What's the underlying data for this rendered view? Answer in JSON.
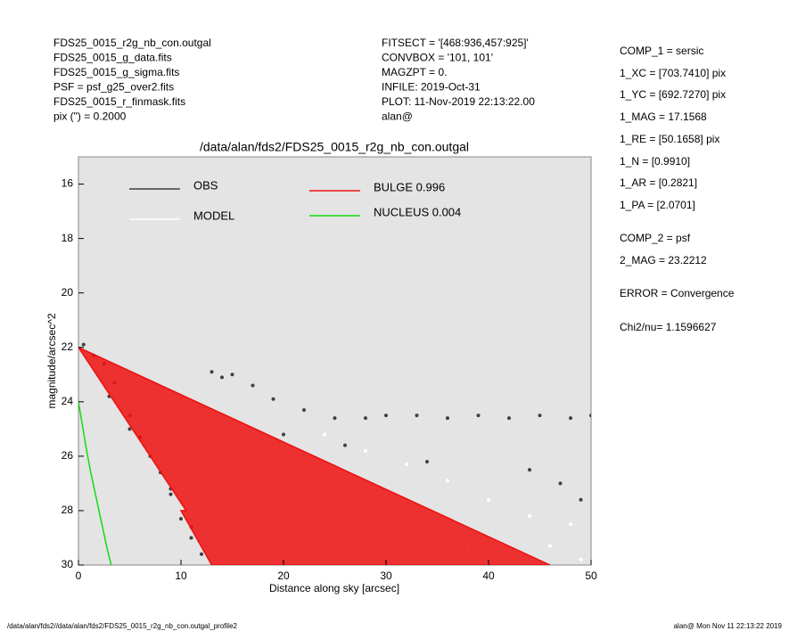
{
  "header": {
    "left": [
      "FDS25_0015_r2g_nb_con.outgal",
      "FDS25_0015_g_data.fits",
      "FDS25_0015_g_sigma.fits",
      "PSF     = psf_g25_over2.fits",
      "FDS25_0015_r_finmask.fits",
      "pix (\") =  0.2000"
    ],
    "middle": [
      "FITSECT = '[468:936,457:925]'",
      "CONVBOX = '101, 101'",
      "MAGZPT  =              0.",
      "INFILE: 2019-Oct-31",
      "PLOT: 11-Nov-2019 22:13:22.00",
      "alan@"
    ]
  },
  "params": [
    "COMP_1  = sersic",
    "1_XC    = [703.7410] pix",
    "1_YC    = [692.7270] pix",
    "1_MAG   = 17.1568",
    "1_RE    = [50.1658] pix",
    "1_N     = [0.9910]",
    "1_AR    = [0.2821]",
    "1_PA    = [2.0701]",
    "COMP_2  = psf",
    "2_MAG   = 23.2212",
    "ERROR   = Convergence",
    "Chi2/nu=       1.1596627"
  ],
  "footer": {
    "left": "/data/alan/fds2//data/alan/fds2/FDS25_0015_r2g_nb_con.outgal_profile2",
    "right": "alan@  Mon Nov 11 22:13:22 2019"
  },
  "chart_data": {
    "type": "scatter",
    "title": "/data/alan/fds2/FDS25_0015_r2g_nb_con.outgal",
    "x_label": "Distance along sky [arcsec]",
    "y_label": "magnitude/arcsec^2",
    "xlim": [
      0,
      50
    ],
    "ylim": [
      30,
      15
    ],
    "xticks": [
      0,
      10,
      20,
      30,
      40,
      50
    ],
    "yticks": [
      16,
      18,
      20,
      22,
      24,
      26,
      28,
      30
    ],
    "background": "#e4e4e4",
    "series": [
      {
        "name": "OBS",
        "color": "#404040",
        "mode": "markers",
        "x": [
          0.5,
          1.5,
          2.5,
          3.5,
          5,
          6,
          8,
          9,
          10,
          11,
          12,
          13,
          14,
          15,
          17,
          19,
          22,
          25,
          28,
          30,
          33,
          36,
          39,
          42,
          45,
          48,
          50,
          3,
          5,
          7,
          9,
          11,
          20,
          26,
          34,
          44,
          47,
          49
        ],
        "values": [
          21.9,
          22.3,
          22.6,
          23.3,
          24.5,
          25.3,
          26.6,
          27.4,
          28.3,
          29,
          29.6,
          22.9,
          23.1,
          23,
          23.4,
          23.9,
          24.3,
          24.6,
          24.6,
          24.5,
          24.5,
          24.6,
          24.5,
          24.6,
          24.5,
          24.6,
          24.5,
          23.8,
          25,
          26,
          27.2,
          28.6,
          25.2,
          25.6,
          26.2,
          26.5,
          27,
          27.6
        ]
      },
      {
        "name": "MODEL",
        "color": "#ffffff",
        "mode": "markers",
        "x": [
          24,
          28,
          32,
          36,
          40,
          44,
          48,
          46,
          49,
          42,
          38
        ],
        "values": [
          25.2,
          25.8,
          26.3,
          26.9,
          27.6,
          28.2,
          28.5,
          29.3,
          29.8,
          29.6,
          29.4
        ]
      },
      {
        "name": "BULGE  0.996",
        "color": "#ee1111",
        "mode": "area",
        "x": [
          0,
          46,
          13,
          10,
          10.5
        ],
        "values": [
          22,
          30,
          30,
          28,
          28
        ]
      },
      {
        "name": "NUCLEUS  0.004",
        "color": "#11dd11",
        "mode": "lines",
        "x": [
          0,
          0.4,
          0.8,
          1.2,
          1.6,
          2,
          2.4,
          2.8,
          3.2
        ],
        "values": [
          24,
          24.9,
          25.8,
          26.6,
          27.3,
          28,
          28.7,
          29.4,
          30
        ]
      }
    ]
  }
}
